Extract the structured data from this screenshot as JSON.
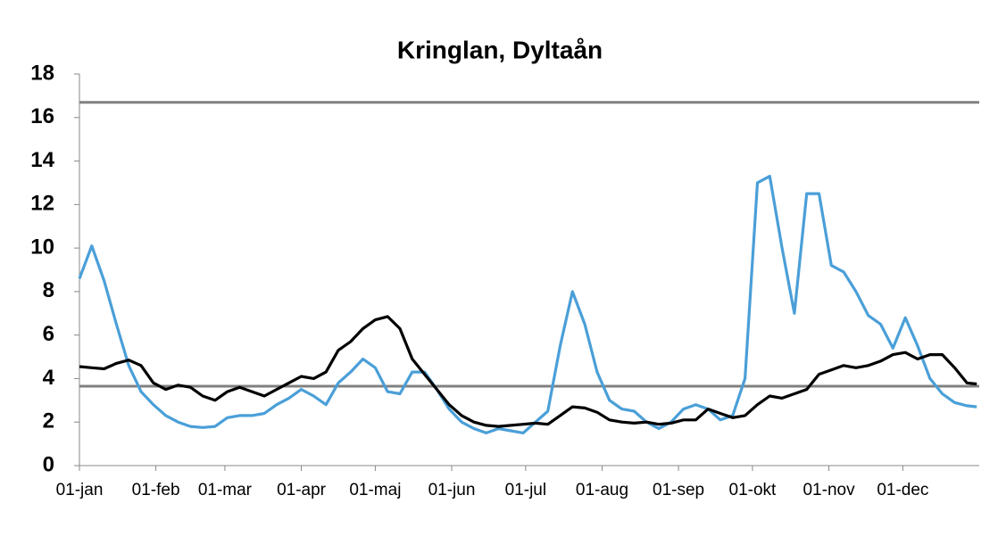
{
  "chart_data": {
    "type": "line",
    "title": "Kringlan, Dyltaån",
    "x": [
      0,
      5,
      10,
      15,
      20,
      25,
      30,
      35,
      40,
      45,
      50,
      55,
      60,
      65,
      70,
      75,
      80,
      85,
      90,
      95,
      100,
      105,
      110,
      115,
      120,
      125,
      130,
      135,
      140,
      145,
      150,
      155,
      160,
      165,
      170,
      175,
      180,
      185,
      190,
      195,
      200,
      205,
      210,
      215,
      220,
      225,
      230,
      235,
      240,
      245,
      250,
      255,
      260,
      265,
      270,
      275,
      280,
      285,
      290,
      295,
      300,
      305,
      310,
      315,
      320,
      325,
      330,
      335,
      340,
      345,
      350,
      355,
      360,
      364
    ],
    "xlim": [
      0,
      365
    ],
    "xticks": [
      {
        "value": 0,
        "label": "01-jan"
      },
      {
        "value": 31,
        "label": "01-feb"
      },
      {
        "value": 59,
        "label": "01-mar"
      },
      {
        "value": 90,
        "label": "01-apr"
      },
      {
        "value": 120,
        "label": "01-maj"
      },
      {
        "value": 151,
        "label": "01-jun"
      },
      {
        "value": 181,
        "label": "01-jul"
      },
      {
        "value": 212,
        "label": "01-aug"
      },
      {
        "value": 243,
        "label": "01-sep"
      },
      {
        "value": 273,
        "label": "01-okt"
      },
      {
        "value": 304,
        "label": "01-nov"
      },
      {
        "value": 334,
        "label": "01-dec"
      }
    ],
    "ylim": [
      0,
      18
    ],
    "yticks": [
      0,
      2,
      4,
      6,
      8,
      10,
      12,
      14,
      16,
      18
    ],
    "hlines": {
      "color": "#808080",
      "values": [
        16.7,
        3.65
      ]
    },
    "series": [
      {
        "color": "#4a9fd8",
        "values": [
          8.6,
          10.1,
          8.5,
          6.5,
          4.6,
          3.4,
          2.8,
          2.3,
          2.0,
          1.8,
          1.75,
          1.8,
          2.2,
          2.3,
          2.3,
          2.4,
          2.8,
          3.1,
          3.5,
          3.2,
          2.8,
          3.8,
          4.3,
          4.9,
          4.5,
          3.4,
          3.3,
          4.3,
          4.3,
          3.5,
          2.6,
          2.0,
          1.7,
          1.5,
          1.7,
          1.6,
          1.5,
          2.0,
          2.5,
          5.5,
          8.0,
          6.5,
          4.3,
          3.0,
          2.6,
          2.5,
          2.0,
          1.7,
          2.0,
          2.6,
          2.8,
          2.6,
          2.1,
          2.3,
          4.0,
          13.0,
          13.3,
          10.0,
          7.0,
          12.5,
          12.5,
          9.2,
          8.9,
          8.0,
          6.9,
          6.5,
          5.4,
          6.8,
          5.5,
          4.0,
          3.3,
          2.9,
          2.75,
          2.7
        ]
      },
      {
        "color": "#000000",
        "values": [
          4.55,
          4.5,
          4.45,
          4.7,
          4.85,
          4.6,
          3.8,
          3.5,
          3.7,
          3.6,
          3.2,
          3.0,
          3.4,
          3.6,
          3.4,
          3.2,
          3.5,
          3.8,
          4.1,
          4.0,
          4.3,
          5.3,
          5.7,
          6.3,
          6.7,
          6.85,
          6.3,
          4.9,
          4.2,
          3.5,
          2.8,
          2.3,
          2.0,
          1.85,
          1.8,
          1.85,
          1.9,
          1.95,
          1.9,
          2.3,
          2.7,
          2.65,
          2.45,
          2.1,
          2.0,
          1.95,
          2.0,
          1.9,
          1.95,
          2.1,
          2.1,
          2.6,
          2.4,
          2.2,
          2.3,
          2.8,
          3.2,
          3.1,
          3.3,
          3.5,
          4.2,
          4.4,
          4.6,
          4.5,
          4.6,
          4.8,
          5.1,
          5.2,
          4.9,
          5.1,
          5.1,
          4.5,
          3.8,
          3.75
        ]
      }
    ]
  }
}
